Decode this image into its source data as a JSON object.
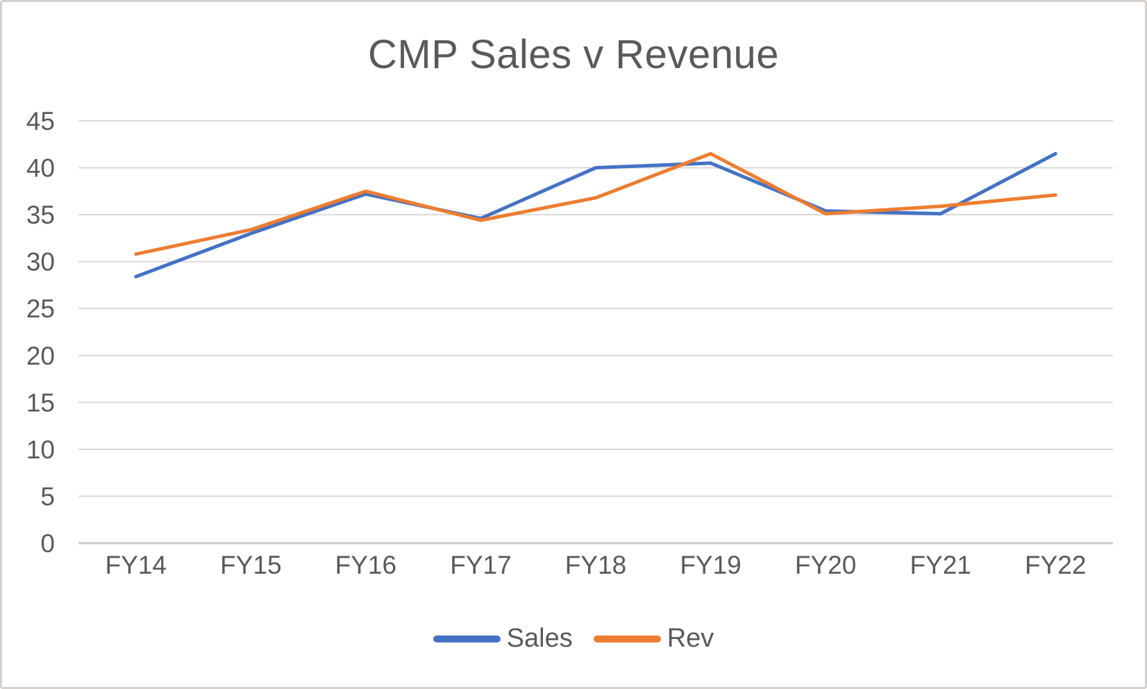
{
  "chart_data": {
    "type": "line",
    "title": "CMP Sales v Revenue",
    "categories": [
      "FY14",
      "FY15",
      "FY16",
      "FY17",
      "FY18",
      "FY19",
      "FY20",
      "FY21",
      "FY22"
    ],
    "series": [
      {
        "name": "Sales",
        "color": "#4472C4",
        "values": [
          28.4,
          33.0,
          37.2,
          34.6,
          40.0,
          40.5,
          35.4,
          35.1,
          41.5
        ]
      },
      {
        "name": "Rev",
        "color": "#ED7D31",
        "values": [
          30.8,
          33.4,
          37.5,
          34.4,
          36.8,
          41.5,
          35.1,
          35.9,
          37.1
        ]
      }
    ],
    "xlabel": "",
    "ylabel": "",
    "y_ticks": [
      0,
      5,
      10,
      15,
      20,
      25,
      30,
      35,
      40,
      45
    ],
    "ylim": [
      0,
      45
    ],
    "grid": true,
    "grid_color": "#D9D9D9",
    "axis_color": "#C8C8C8",
    "text_color": "#595959",
    "legend_position": "bottom"
  }
}
